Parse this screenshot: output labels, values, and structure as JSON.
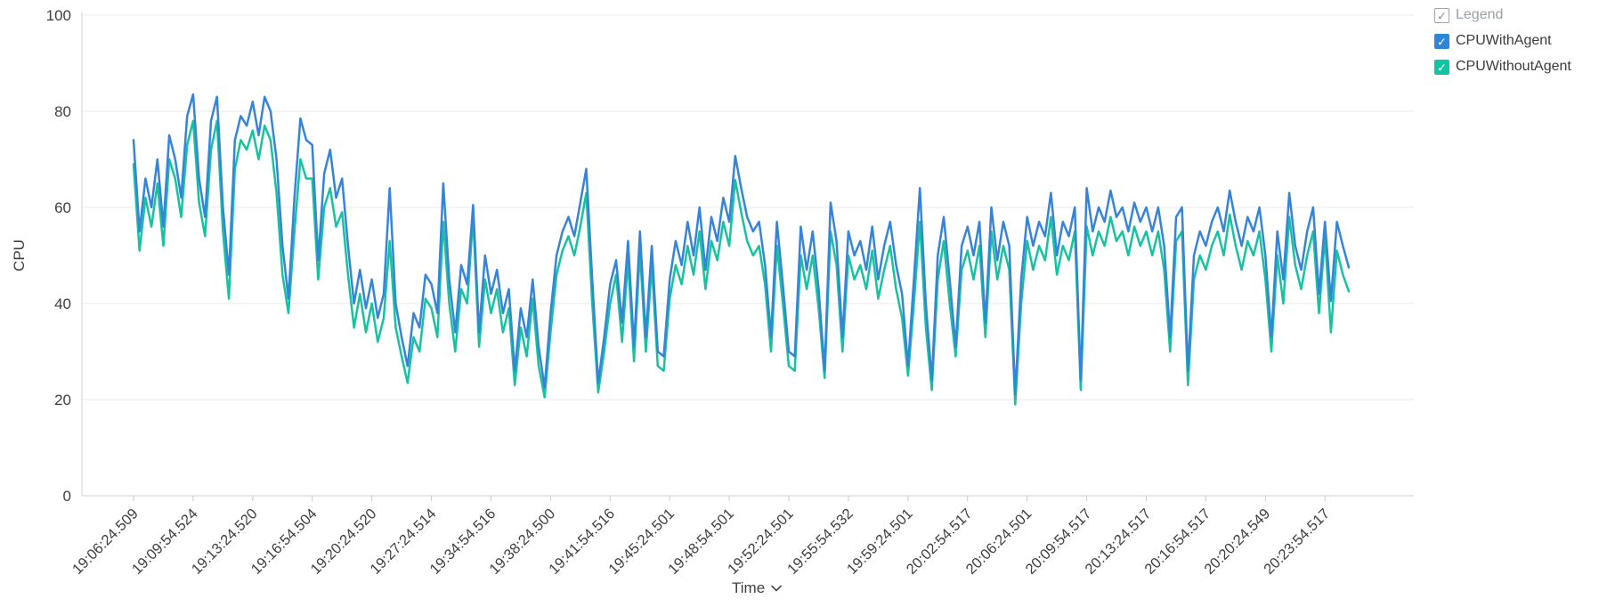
{
  "legend": {
    "header": {
      "label": "Legend",
      "checked": true
    },
    "items": [
      {
        "label": "CPUWithAgent",
        "color": "#2d86d8",
        "checked": true
      },
      {
        "label": "CPUWithoutAgent",
        "color": "#0fc5a2",
        "checked": true
      }
    ],
    "checkmark": "✓"
  },
  "chart_data": {
    "type": "line",
    "title": "",
    "xlabel": "Time",
    "ylabel": "CPU",
    "ylim": [
      0,
      100
    ],
    "y_ticks": [
      0,
      20,
      40,
      60,
      80,
      100
    ],
    "grid": true,
    "legend_position": "right",
    "x_tick_labels": [
      "19:06:24.509",
      "19:09:54.524",
      "19:13:24.520",
      "19:16:54.504",
      "19:20:24.520",
      "19:27:24.514",
      "19:34:54.516",
      "19:38:24.500",
      "19:41:54.516",
      "19:45:24.501",
      "19:48:54.501",
      "19:52:24.501",
      "19:55:54.532",
      "19:59:24.501",
      "20:02:54.517",
      "20:06:24.501",
      "20:09:54.517",
      "20:13:24.517",
      "20:16:54.517",
      "20:20:24.549",
      "20:23:54.517"
    ],
    "points_per_tick": 10,
    "series": [
      {
        "name": "CPUWithAgent",
        "color": "#3584d9",
        "values": [
          74,
          55,
          66,
          60,
          70,
          56,
          75,
          70,
          62,
          79,
          83.5,
          66,
          58,
          78,
          83,
          60,
          46,
          74,
          79,
          77,
          82,
          75,
          83,
          80,
          70,
          52,
          41,
          62,
          78.5,
          74,
          73,
          49,
          67,
          72,
          62,
          66,
          52,
          40,
          47,
          39,
          45,
          37,
          42,
          64,
          40,
          33,
          27,
          38,
          35,
          46,
          44,
          38,
          65,
          45,
          34,
          48,
          44,
          60.5,
          34,
          50,
          42,
          47,
          38,
          43,
          26,
          39,
          33,
          45,
          31,
          22.5,
          38,
          50,
          55,
          58,
          54,
          61,
          68,
          45,
          23.5,
          33,
          44,
          49,
          36,
          53,
          31,
          55,
          33,
          52,
          30,
          29,
          45,
          53,
          48,
          57,
          50,
          60,
          47,
          58,
          53,
          62,
          57,
          70.7,
          64,
          58,
          55,
          57,
          48,
          33,
          57,
          44,
          30,
          29,
          56,
          47,
          55,
          43,
          26,
          61,
          53,
          33,
          55,
          50,
          53,
          47,
          56,
          45,
          52,
          57,
          48,
          42,
          27,
          45,
          64,
          40,
          24,
          50,
          58,
          45,
          31,
          52,
          56,
          50,
          57,
          36,
          60,
          49,
          57,
          52,
          21,
          45,
          58,
          52,
          57,
          54,
          63,
          50,
          57,
          54,
          60,
          24,
          64,
          55,
          60,
          57,
          63.5,
          58,
          60,
          55,
          61,
          57,
          60,
          55,
          60,
          52,
          33,
          58,
          60,
          26,
          50,
          55,
          52,
          57,
          60,
          55,
          63.5,
          57,
          52,
          58,
          55,
          60,
          50,
          33,
          55,
          45,
          63,
          52,
          47,
          55,
          60,
          42,
          57,
          40.5,
          57,
          52,
          47.5
        ]
      },
      {
        "name": "CPUWithoutAgent",
        "color": "#16c2a0",
        "values": [
          69,
          51,
          62,
          56,
          65,
          52,
          70,
          66,
          58,
          73,
          78,
          61,
          54,
          72,
          78,
          55,
          41,
          68,
          74,
          72,
          76,
          70,
          77,
          74,
          63,
          46,
          38,
          55,
          70,
          66,
          66,
          45,
          60,
          64,
          56,
          59,
          46,
          35,
          42,
          34,
          40,
          32,
          37,
          53,
          35,
          29,
          23.5,
          33,
          30,
          41,
          39,
          33,
          57,
          40,
          30,
          43,
          40,
          58,
          31,
          45,
          38,
          43,
          34,
          39,
          23,
          35,
          29,
          41,
          27,
          20.5,
          34,
          46,
          51,
          54,
          50,
          56,
          63,
          40,
          21.5,
          30,
          40,
          46,
          32,
          49,
          28,
          51,
          30,
          48,
          27,
          26,
          41,
          48,
          44,
          52,
          46,
          55,
          43,
          53,
          49,
          57,
          52,
          65.7,
          59,
          53,
          50,
          52,
          44,
          30,
          52,
          40,
          27,
          26,
          50,
          43,
          50,
          39,
          24.5,
          55,
          48,
          30,
          50,
          45,
          48,
          43,
          51,
          41,
          47,
          52,
          43,
          37,
          25,
          40,
          57,
          35,
          22,
          45,
          53,
          40,
          29,
          47,
          51,
          45,
          52,
          33,
          55,
          45,
          52,
          47,
          19,
          40,
          53,
          47,
          52,
          49,
          58,
          46,
          52,
          49,
          55,
          22,
          56,
          50,
          55,
          52,
          58,
          53,
          55,
          50,
          56,
          52,
          55,
          50,
          55,
          47,
          30,
          53,
          55,
          23,
          45,
          50,
          47,
          52,
          55,
          50,
          58.5,
          52,
          47,
          53,
          50,
          55,
          45,
          30,
          50,
          40,
          58,
          48,
          43,
          50,
          55,
          38,
          54,
          34,
          51,
          46,
          42.5
        ]
      }
    ]
  }
}
